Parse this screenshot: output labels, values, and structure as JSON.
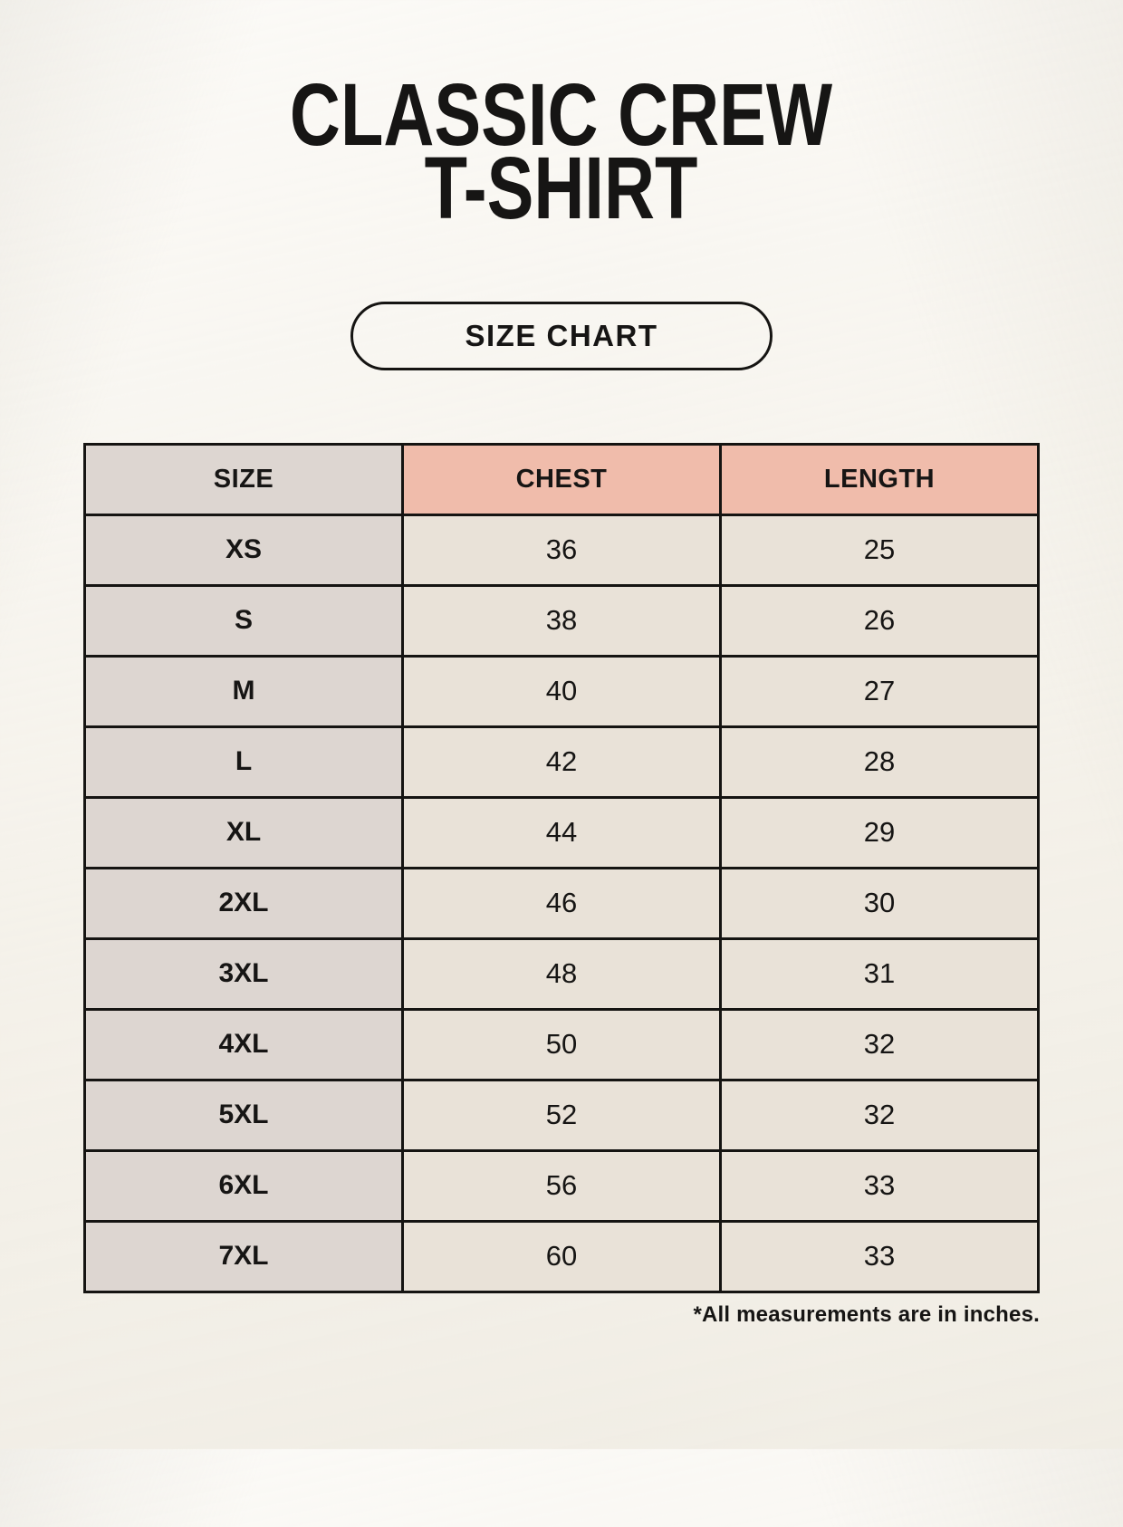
{
  "page": {
    "title_line1": "CLASSIC CREW",
    "title_line2": "T-SHIRT",
    "button_label": "SIZE CHART",
    "footnote": "*All measurements are in inches."
  },
  "chart_data": {
    "type": "table",
    "title": "Classic Crew T-Shirt Size Chart",
    "columns": [
      "SIZE",
      "CHEST",
      "LENGTH"
    ],
    "rows": [
      [
        "XS",
        "36",
        "25"
      ],
      [
        "S",
        "38",
        "26"
      ],
      [
        "M",
        "40",
        "27"
      ],
      [
        "L",
        "42",
        "28"
      ],
      [
        "XL",
        "44",
        "29"
      ],
      [
        "2XL",
        "46",
        "30"
      ],
      [
        "3XL",
        "48",
        "31"
      ],
      [
        "4XL",
        "50",
        "32"
      ],
      [
        "5XL",
        "52",
        "32"
      ],
      [
        "6XL",
        "56",
        "33"
      ],
      [
        "7XL",
        "60",
        "33"
      ]
    ],
    "units": "inches"
  },
  "colors": {
    "background": "#f7f4ed",
    "table_border": "#151412",
    "header_fill": "#f0bcab",
    "size_column_fill": "#ddd6d1",
    "data_cell_fill": "#e9e2d8",
    "text": "#161514"
  }
}
